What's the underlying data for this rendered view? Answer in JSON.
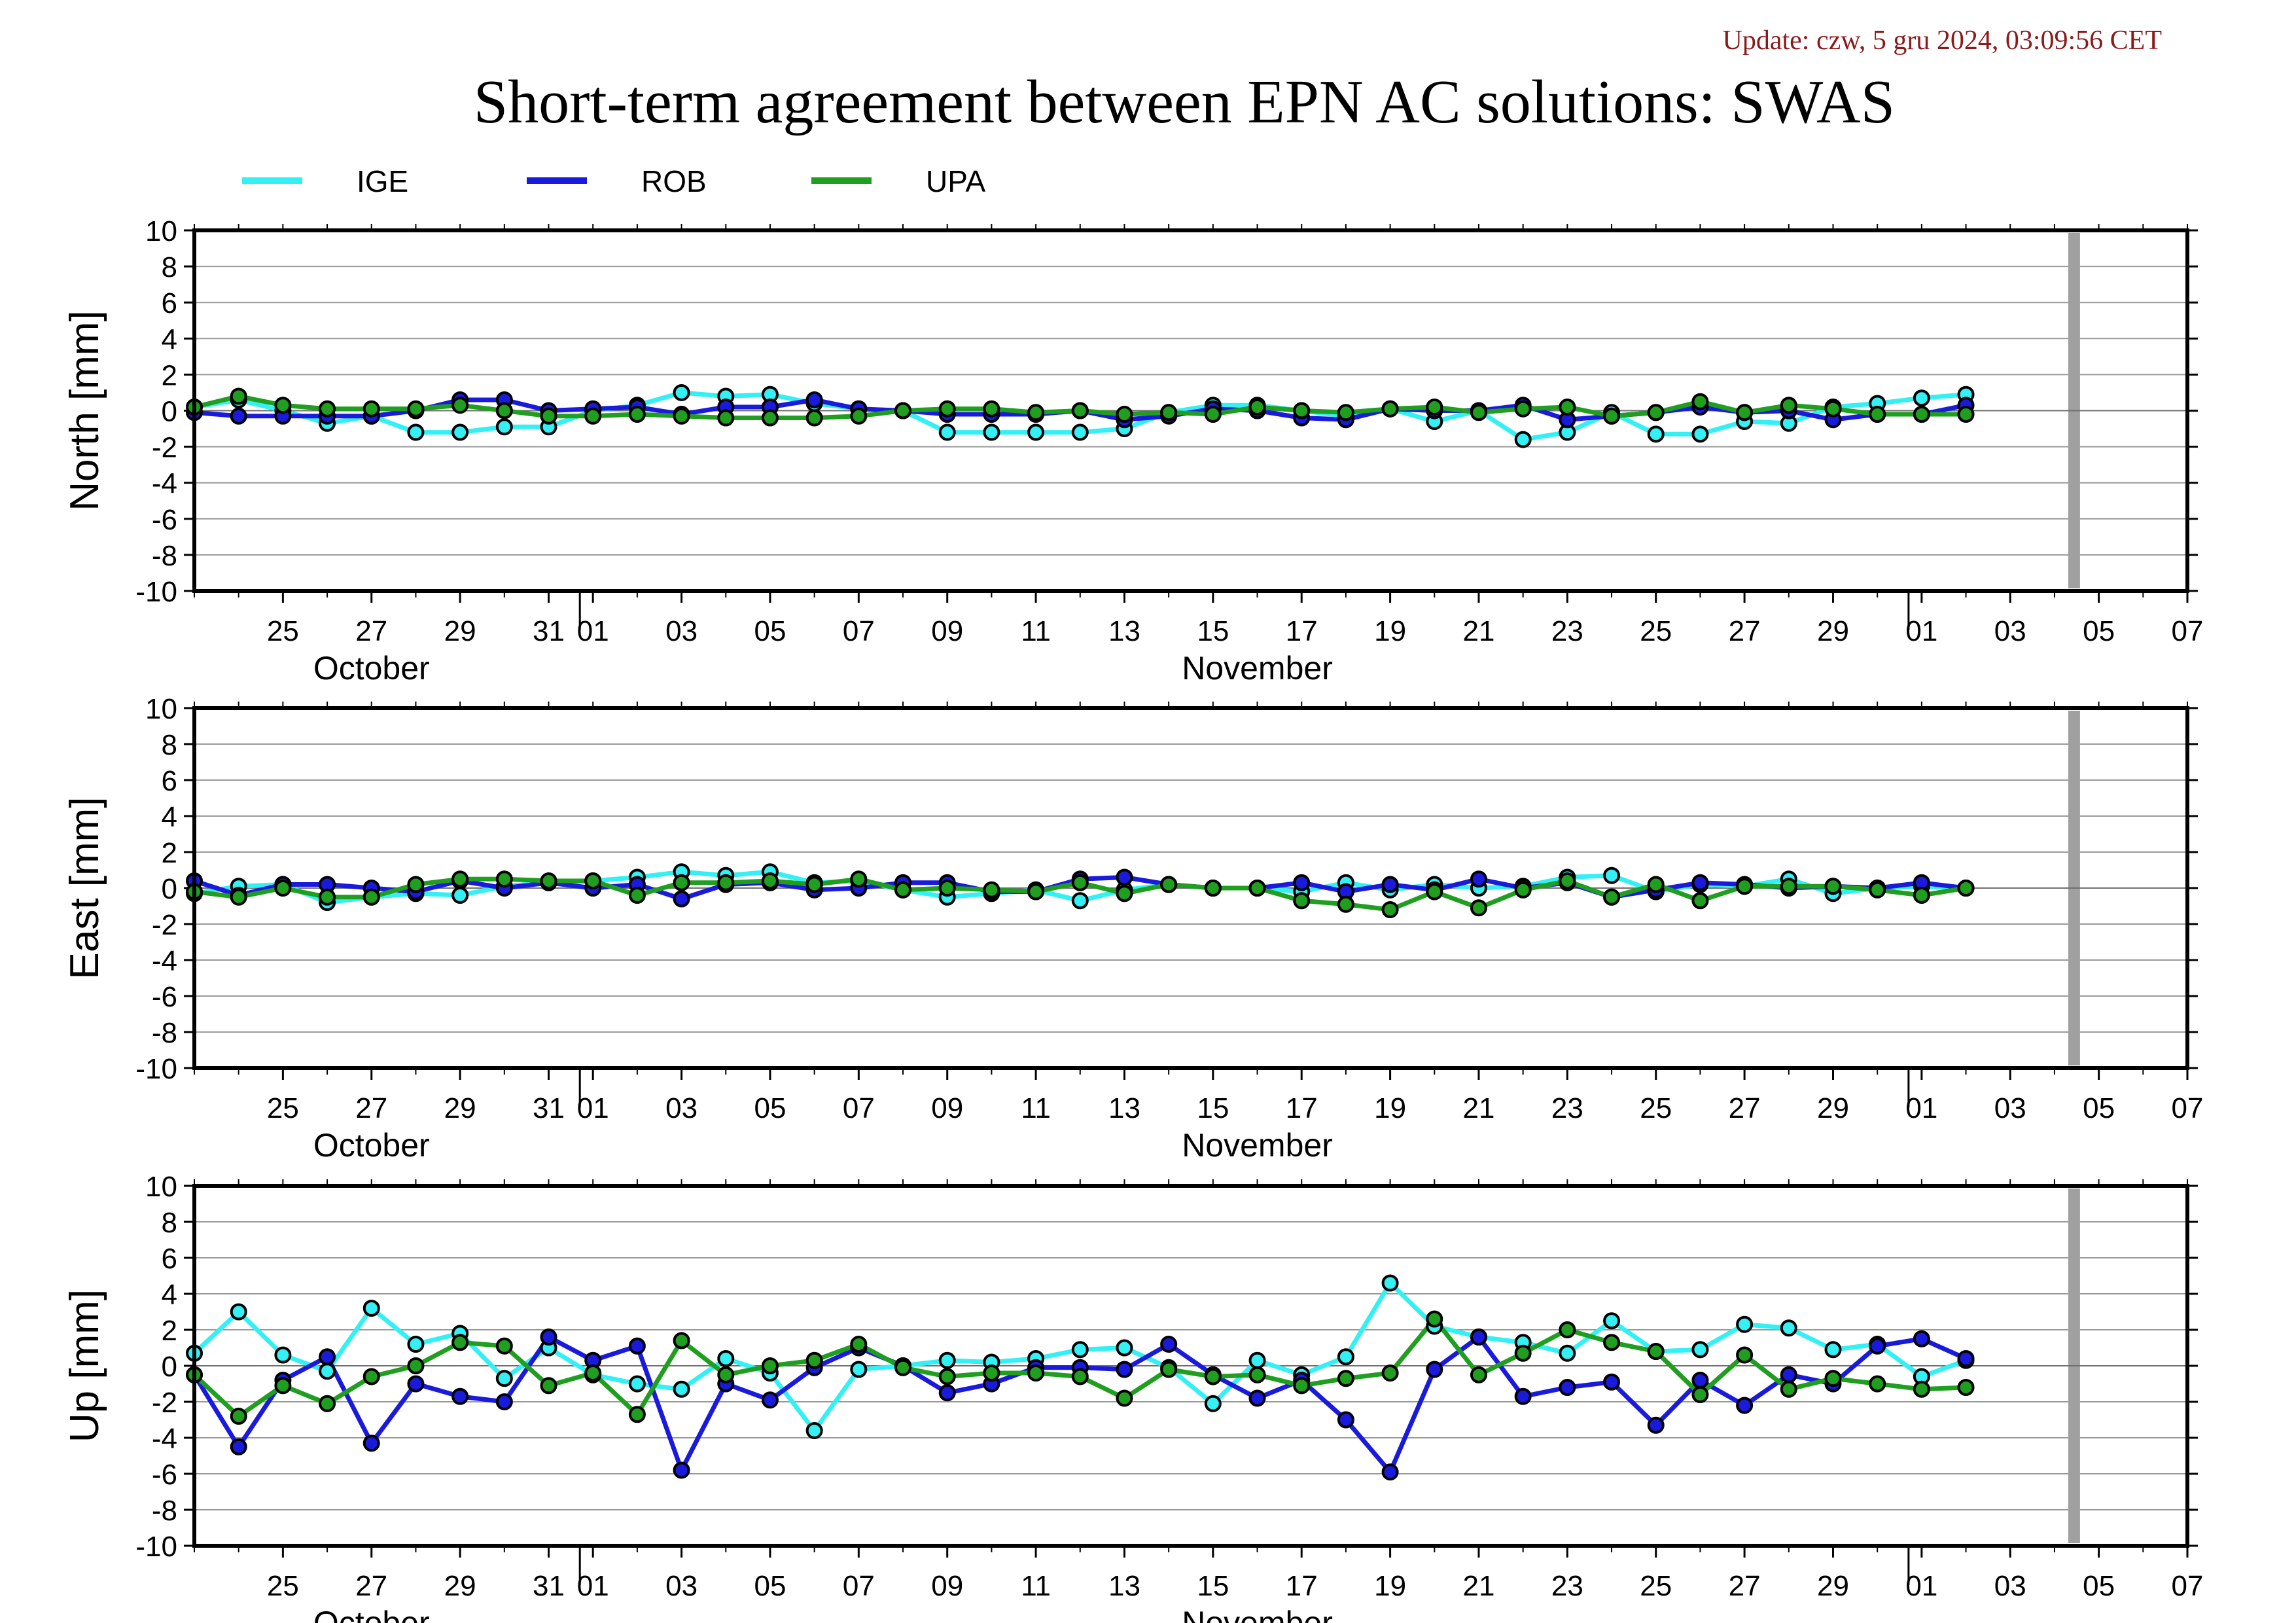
{
  "header": {
    "update": "Update: czw, 5 gru 2024, 03:09:56 CET",
    "title": "Short-term agreement between EPN AC solutions: SWAS"
  },
  "legend": [
    {
      "name": "IGE",
      "color": "#33f0f5"
    },
    {
      "name": "ROB",
      "color": "#1a1adc"
    },
    {
      "name": "UPA",
      "color": "#1f9e1f"
    }
  ],
  "chart_data": [
    {
      "type": "line",
      "ylabel": "North [mm]",
      "ylim": [
        -10,
        10
      ],
      "yticks": [
        10,
        8,
        6,
        4,
        2,
        0,
        -2,
        -4,
        -6,
        -8,
        -10
      ],
      "xlim": [
        "2024-10-23",
        "2024-12-07"
      ],
      "xtick_labels": [
        [
          "2024-10-25",
          "25"
        ],
        [
          "2024-10-27",
          "27"
        ],
        [
          "2024-10-29",
          "29"
        ],
        [
          "2024-10-31",
          "31"
        ],
        [
          "2024-11-01",
          "01"
        ],
        [
          "2024-11-03",
          "03"
        ],
        [
          "2024-11-05",
          "05"
        ],
        [
          "2024-11-07",
          "07"
        ],
        [
          "2024-11-09",
          "09"
        ],
        [
          "2024-11-11",
          "11"
        ],
        [
          "2024-11-13",
          "13"
        ],
        [
          "2024-11-15",
          "15"
        ],
        [
          "2024-11-17",
          "17"
        ],
        [
          "2024-11-19",
          "19"
        ],
        [
          "2024-11-21",
          "21"
        ],
        [
          "2024-11-23",
          "23"
        ],
        [
          "2024-11-25",
          "25"
        ],
        [
          "2024-11-27",
          "27"
        ],
        [
          "2024-11-29",
          "29"
        ],
        [
          "2024-12-01",
          "01"
        ],
        [
          "2024-12-03",
          "03"
        ],
        [
          "2024-12-05",
          "05"
        ],
        [
          "2024-12-07",
          "07"
        ]
      ],
      "month_labels": [
        [
          "2024-10-27",
          "October"
        ],
        [
          "2024-11-16",
          "November"
        ]
      ],
      "month_boundaries": [
        "2024-11-01",
        "2024-12-01"
      ],
      "current_date": "2024-12-04",
      "grid": true,
      "x": [
        "2024-10-23",
        "2024-10-24",
        "2024-10-25",
        "2024-10-26",
        "2024-10-27",
        "2024-10-28",
        "2024-10-29",
        "2024-10-30",
        "2024-10-31",
        "2024-11-01",
        "2024-11-02",
        "2024-11-03",
        "2024-11-04",
        "2024-11-05",
        "2024-11-06",
        "2024-11-07",
        "2024-11-08",
        "2024-11-09",
        "2024-11-10",
        "2024-11-11",
        "2024-11-12",
        "2024-11-13",
        "2024-11-14",
        "2024-11-15",
        "2024-11-16",
        "2024-11-17",
        "2024-11-18",
        "2024-11-19",
        "2024-11-20",
        "2024-11-21",
        "2024-11-22",
        "2024-11-23",
        "2024-11-24",
        "2024-11-25",
        "2024-11-26",
        "2024-11-27",
        "2024-11-28",
        "2024-11-29",
        "2024-11-30",
        "2024-12-01",
        "2024-12-02",
        "2024-12-03"
      ],
      "series": [
        {
          "name": "IGE",
          "values": [
            0.2,
            0.6,
            0.0,
            -0.7,
            -0.3,
            -1.2,
            -1.2,
            -0.9,
            -0.9,
            0.0,
            0.3,
            1.0,
            0.8,
            0.9,
            0.4,
            0.1,
            0.0,
            -1.2,
            -1.2,
            -1.2,
            -1.2,
            -1.0,
            -0.1,
            0.3,
            0.3,
            0.0,
            -0.3,
            0.1,
            -0.6,
            0.0,
            -1.6,
            -1.2,
            -0.1,
            -1.3,
            -1.3,
            -0.6,
            -0.7,
            0.2,
            0.4,
            0.7,
            0.9,
            null
          ]
        },
        {
          "name": "ROB",
          "values": [
            -0.1,
            -0.3,
            -0.3,
            -0.3,
            -0.3,
            0.0,
            0.6,
            0.6,
            0.0,
            0.1,
            0.2,
            -0.2,
            0.2,
            0.2,
            0.6,
            0.1,
            0.0,
            -0.2,
            -0.2,
            -0.2,
            0.0,
            -0.5,
            -0.3,
            0.1,
            0.0,
            -0.4,
            -0.5,
            0.1,
            0.0,
            0.0,
            0.3,
            -0.5,
            -0.3,
            -0.1,
            0.2,
            -0.1,
            0.0,
            -0.5,
            -0.2,
            -0.2,
            0.3,
            null
          ]
        },
        {
          "name": "UPA",
          "values": [
            0.2,
            0.8,
            0.3,
            0.1,
            0.1,
            0.1,
            0.3,
            0.0,
            -0.3,
            -0.3,
            -0.2,
            -0.3,
            -0.4,
            -0.4,
            -0.4,
            -0.3,
            0.0,
            0.1,
            0.1,
            -0.1,
            0.0,
            -0.2,
            -0.1,
            -0.2,
            0.2,
            0.0,
            -0.1,
            0.1,
            0.2,
            -0.1,
            0.1,
            0.2,
            -0.3,
            -0.1,
            0.5,
            -0.1,
            0.3,
            0.1,
            -0.2,
            -0.2,
            -0.2,
            null
          ]
        }
      ]
    },
    {
      "type": "line",
      "ylabel": "East [mm]",
      "ylim": [
        -10,
        10
      ],
      "yticks": [
        10,
        8,
        6,
        4,
        2,
        0,
        -2,
        -4,
        -6,
        -8,
        -10
      ],
      "xlim": [
        "2024-10-23",
        "2024-12-07"
      ],
      "xtick_labels": [
        [
          "2024-10-25",
          "25"
        ],
        [
          "2024-10-27",
          "27"
        ],
        [
          "2024-10-29",
          "29"
        ],
        [
          "2024-10-31",
          "31"
        ],
        [
          "2024-11-01",
          "01"
        ],
        [
          "2024-11-03",
          "03"
        ],
        [
          "2024-11-05",
          "05"
        ],
        [
          "2024-11-07",
          "07"
        ],
        [
          "2024-11-09",
          "09"
        ],
        [
          "2024-11-11",
          "11"
        ],
        [
          "2024-11-13",
          "13"
        ],
        [
          "2024-11-15",
          "15"
        ],
        [
          "2024-11-17",
          "17"
        ],
        [
          "2024-11-19",
          "19"
        ],
        [
          "2024-11-21",
          "21"
        ],
        [
          "2024-11-23",
          "23"
        ],
        [
          "2024-11-25",
          "25"
        ],
        [
          "2024-11-27",
          "27"
        ],
        [
          "2024-11-29",
          "29"
        ],
        [
          "2024-12-01",
          "01"
        ],
        [
          "2024-12-03",
          "03"
        ],
        [
          "2024-12-05",
          "05"
        ],
        [
          "2024-12-07",
          "07"
        ]
      ],
      "month_labels": [
        [
          "2024-10-27",
          "October"
        ],
        [
          "2024-11-16",
          "November"
        ]
      ],
      "month_boundaries": [
        "2024-11-01",
        "2024-12-01"
      ],
      "current_date": "2024-12-04",
      "grid": true,
      "x": [
        "2024-10-23",
        "2024-10-24",
        "2024-10-25",
        "2024-10-26",
        "2024-10-27",
        "2024-10-28",
        "2024-10-29",
        "2024-10-30",
        "2024-10-31",
        "2024-11-01",
        "2024-11-02",
        "2024-11-03",
        "2024-11-04",
        "2024-11-05",
        "2024-11-06",
        "2024-11-07",
        "2024-11-08",
        "2024-11-09",
        "2024-11-10",
        "2024-11-11",
        "2024-11-12",
        "2024-11-13",
        "2024-11-14",
        "2024-11-15",
        "2024-11-16",
        "2024-11-17",
        "2024-11-18",
        "2024-11-19",
        "2024-11-20",
        "2024-11-21",
        "2024-11-22",
        "2024-11-23",
        "2024-11-24",
        "2024-11-25",
        "2024-11-26",
        "2024-11-27",
        "2024-11-28",
        "2024-11-29",
        "2024-11-30",
        "2024-12-01",
        "2024-12-02",
        "2024-12-03"
      ],
      "series": [
        {
          "name": "IGE",
          "values": [
            -0.3,
            0.1,
            0.2,
            -0.8,
            -0.5,
            -0.3,
            -0.4,
            0.1,
            0.3,
            0.4,
            0.6,
            0.9,
            0.7,
            0.9,
            0.3,
            0.4,
            -0.1,
            -0.5,
            -0.3,
            -0.1,
            -0.7,
            -0.1,
            0.2,
            0.0,
            0.0,
            -0.2,
            0.3,
            -0.1,
            0.2,
            0.0,
            0.1,
            0.6,
            0.7,
            -0.2,
            0.2,
            0.1,
            0.5,
            -0.3,
            0.0,
            0.1,
            0.0,
            null
          ]
        },
        {
          "name": "ROB",
          "values": [
            0.4,
            -0.4,
            0.2,
            0.2,
            0.0,
            -0.2,
            0.4,
            0.0,
            0.3,
            0.0,
            0.2,
            -0.6,
            0.2,
            0.3,
            -0.1,
            0.0,
            0.3,
            0.3,
            -0.2,
            -0.2,
            0.5,
            0.6,
            0.2,
            0.0,
            0.0,
            0.3,
            -0.2,
            0.2,
            -0.1,
            0.5,
            0.0,
            0.3,
            -0.5,
            -0.1,
            0.3,
            0.2,
            0.0,
            0.1,
            0.0,
            0.3,
            0.0,
            null
          ]
        },
        {
          "name": "UPA",
          "values": [
            -0.2,
            -0.5,
            0.0,
            -0.5,
            -0.5,
            0.2,
            0.5,
            0.5,
            0.4,
            0.4,
            -0.4,
            0.3,
            0.3,
            0.4,
            0.2,
            0.5,
            -0.1,
            0.0,
            -0.1,
            -0.2,
            0.3,
            -0.3,
            0.2,
            0.0,
            0.0,
            -0.7,
            -0.9,
            -1.2,
            -0.2,
            -1.1,
            -0.1,
            0.4,
            -0.5,
            0.2,
            -0.7,
            0.1,
            0.1,
            0.1,
            -0.1,
            -0.4,
            0.0,
            null
          ]
        }
      ]
    },
    {
      "type": "line",
      "ylabel": "Up [mm]",
      "ylim": [
        -10,
        10
      ],
      "yticks": [
        10,
        8,
        6,
        4,
        2,
        0,
        -2,
        -4,
        -6,
        -8,
        -10
      ],
      "xlim": [
        "2024-10-23",
        "2024-12-07"
      ],
      "xtick_labels": [
        [
          "2024-10-25",
          "25"
        ],
        [
          "2024-10-27",
          "27"
        ],
        [
          "2024-10-29",
          "29"
        ],
        [
          "2024-10-31",
          "31"
        ],
        [
          "2024-11-01",
          "01"
        ],
        [
          "2024-11-03",
          "03"
        ],
        [
          "2024-11-05",
          "05"
        ],
        [
          "2024-11-07",
          "07"
        ],
        [
          "2024-11-09",
          "09"
        ],
        [
          "2024-11-11",
          "11"
        ],
        [
          "2024-11-13",
          "13"
        ],
        [
          "2024-11-15",
          "15"
        ],
        [
          "2024-11-17",
          "17"
        ],
        [
          "2024-11-19",
          "19"
        ],
        [
          "2024-11-21",
          "21"
        ],
        [
          "2024-11-23",
          "23"
        ],
        [
          "2024-11-25",
          "25"
        ],
        [
          "2024-11-27",
          "27"
        ],
        [
          "2024-11-29",
          "29"
        ],
        [
          "2024-12-01",
          "01"
        ],
        [
          "2024-12-03",
          "03"
        ],
        [
          "2024-12-05",
          "05"
        ],
        [
          "2024-12-07",
          "07"
        ]
      ],
      "month_labels": [
        [
          "2024-10-27",
          "October"
        ],
        [
          "2024-11-16",
          "November"
        ]
      ],
      "month_boundaries": [
        "2024-11-01",
        "2024-12-01"
      ],
      "current_date": "2024-12-04",
      "grid": true,
      "x": [
        "2024-10-23",
        "2024-10-24",
        "2024-10-25",
        "2024-10-26",
        "2024-10-27",
        "2024-10-28",
        "2024-10-29",
        "2024-10-30",
        "2024-10-31",
        "2024-11-01",
        "2024-11-02",
        "2024-11-03",
        "2024-11-04",
        "2024-11-05",
        "2024-11-06",
        "2024-11-07",
        "2024-11-08",
        "2024-11-09",
        "2024-11-10",
        "2024-11-11",
        "2024-11-12",
        "2024-11-13",
        "2024-11-14",
        "2024-11-15",
        "2024-11-16",
        "2024-11-17",
        "2024-11-18",
        "2024-11-19",
        "2024-11-20",
        "2024-11-21",
        "2024-11-22",
        "2024-11-23",
        "2024-11-24",
        "2024-11-25",
        "2024-11-26",
        "2024-11-27",
        "2024-11-28",
        "2024-11-29",
        "2024-11-30",
        "2024-12-01",
        "2024-12-02",
        "2024-12-03"
      ],
      "series": [
        {
          "name": "IGE",
          "values": [
            0.7,
            3.0,
            0.6,
            -0.3,
            3.2,
            1.2,
            1.8,
            -0.7,
            1.0,
            -0.5,
            -1.0,
            -1.3,
            0.4,
            -0.4,
            -3.6,
            -0.2,
            0.0,
            0.3,
            0.2,
            0.4,
            0.9,
            1.0,
            -0.1,
            -2.1,
            0.3,
            -0.5,
            0.5,
            4.6,
            2.2,
            1.6,
            1.3,
            0.7,
            2.5,
            0.8,
            0.9,
            2.3,
            2.1,
            0.9,
            1.2,
            -0.6,
            0.3,
            null
          ]
        },
        {
          "name": "ROB",
          "values": [
            -0.5,
            -4.5,
            -0.8,
            0.5,
            -4.3,
            -1.0,
            -1.7,
            -2.0,
            1.6,
            0.3,
            1.1,
            -5.8,
            -1.0,
            -1.9,
            -0.1,
            1.0,
            0.0,
            -1.5,
            -1.0,
            -0.1,
            -0.1,
            -0.2,
            1.2,
            -0.5,
            -1.8,
            -0.8,
            -3.0,
            -5.9,
            -0.2,
            1.6,
            -1.7,
            -1.2,
            -0.9,
            -3.3,
            -0.8,
            -2.2,
            -0.5,
            -1.0,
            1.1,
            1.5,
            0.4,
            null
          ]
        },
        {
          "name": "UPA",
          "values": [
            -0.5,
            -2.8,
            -1.1,
            -2.1,
            -0.6,
            0.0,
            1.3,
            1.1,
            -1.1,
            -0.4,
            -2.7,
            1.4,
            -0.5,
            0.0,
            0.3,
            1.2,
            -0.1,
            -0.6,
            -0.4,
            -0.4,
            -0.6,
            -1.8,
            -0.2,
            -0.6,
            -0.5,
            -1.1,
            -0.7,
            -0.4,
            2.6,
            -0.5,
            0.7,
            2.0,
            1.3,
            0.8,
            -1.6,
            0.6,
            -1.3,
            -0.7,
            -1.0,
            -1.3,
            -1.2,
            null
          ]
        }
      ]
    }
  ]
}
